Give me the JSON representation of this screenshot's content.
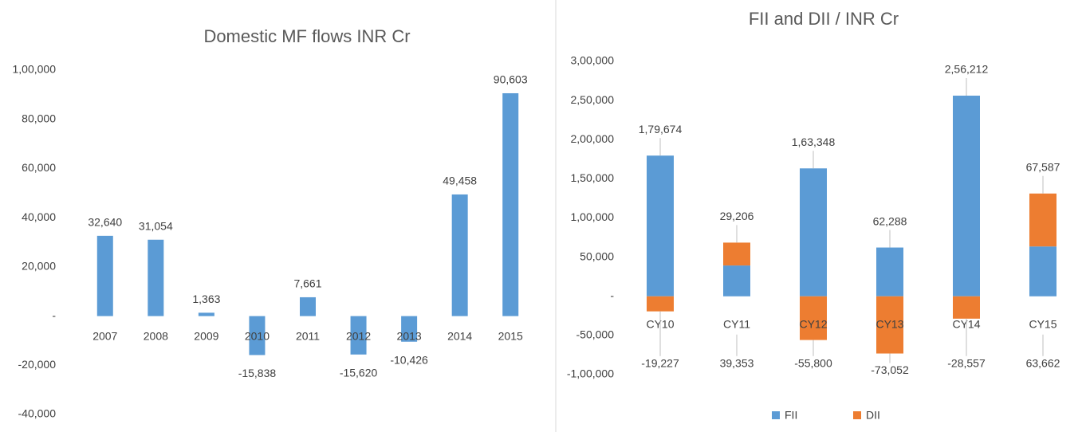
{
  "chart_data": [
    {
      "type": "bar",
      "title": "Domestic MF flows INR Cr",
      "categories": [
        "2007",
        "2008",
        "2009",
        "2010",
        "2011",
        "2012",
        "2013",
        "2014",
        "2015"
      ],
      "values": [
        32640,
        31054,
        1363,
        -15838,
        7661,
        -15620,
        -10426,
        49458,
        90603
      ],
      "value_labels": [
        "32,640",
        "31,054",
        "1,363",
        "-15,838",
        "7,661",
        "-15,620",
        "-10,426",
        "49,458",
        "90,603"
      ],
      "color": "#5b9bd5",
      "ylim": [
        -40000,
        100000
      ],
      "yticks": [
        {
          "value": 100000,
          "label": "1,00,000"
        },
        {
          "value": 80000,
          "label": "80,000"
        },
        {
          "value": 60000,
          "label": "60,000"
        },
        {
          "value": 40000,
          "label": "40,000"
        },
        {
          "value": 20000,
          "label": "20,000"
        },
        {
          "value": 0,
          "label": "-"
        },
        {
          "value": -20000,
          "label": "-20,000"
        },
        {
          "value": -40000,
          "label": "-40,000"
        }
      ],
      "grid": false
    },
    {
      "type": "stacked_bar",
      "title": "FII and DII / INR Cr",
      "categories": [
        "CY10",
        "CY11",
        "CY12",
        "CY13",
        "CY14",
        "CY15"
      ],
      "series": [
        {
          "name": "FII",
          "color": "#5b9bd5",
          "values": [
            179674,
            39353,
            163348,
            62288,
            256212,
            63662
          ],
          "value_labels": [
            "1,79,674",
            "39,353",
            "1,63,348",
            "62,288",
            "2,56,212",
            "63,662"
          ]
        },
        {
          "name": "DII",
          "color": "#ed7d31",
          "values": [
            -19227,
            29206,
            -55800,
            -73052,
            -28557,
            67587
          ],
          "value_labels": [
            "-19,227",
            "29,206",
            "-55,800",
            "-73,052",
            "-28,557",
            "67,587"
          ]
        }
      ],
      "ylim": [
        -100000,
        300000
      ],
      "yticks": [
        {
          "value": 300000,
          "label": "3,00,000"
        },
        {
          "value": 250000,
          "label": "2,50,000"
        },
        {
          "value": 200000,
          "label": "2,00,000"
        },
        {
          "value": 150000,
          "label": "1,50,000"
        },
        {
          "value": 100000,
          "label": "1,00,000"
        },
        {
          "value": 50000,
          "label": "50,000"
        },
        {
          "value": 0,
          "label": "-"
        },
        {
          "value": -50000,
          "label": "-50,000"
        },
        {
          "value": -100000,
          "label": "-1,00,000"
        }
      ],
      "grid": false,
      "legend": "bottom"
    }
  ]
}
